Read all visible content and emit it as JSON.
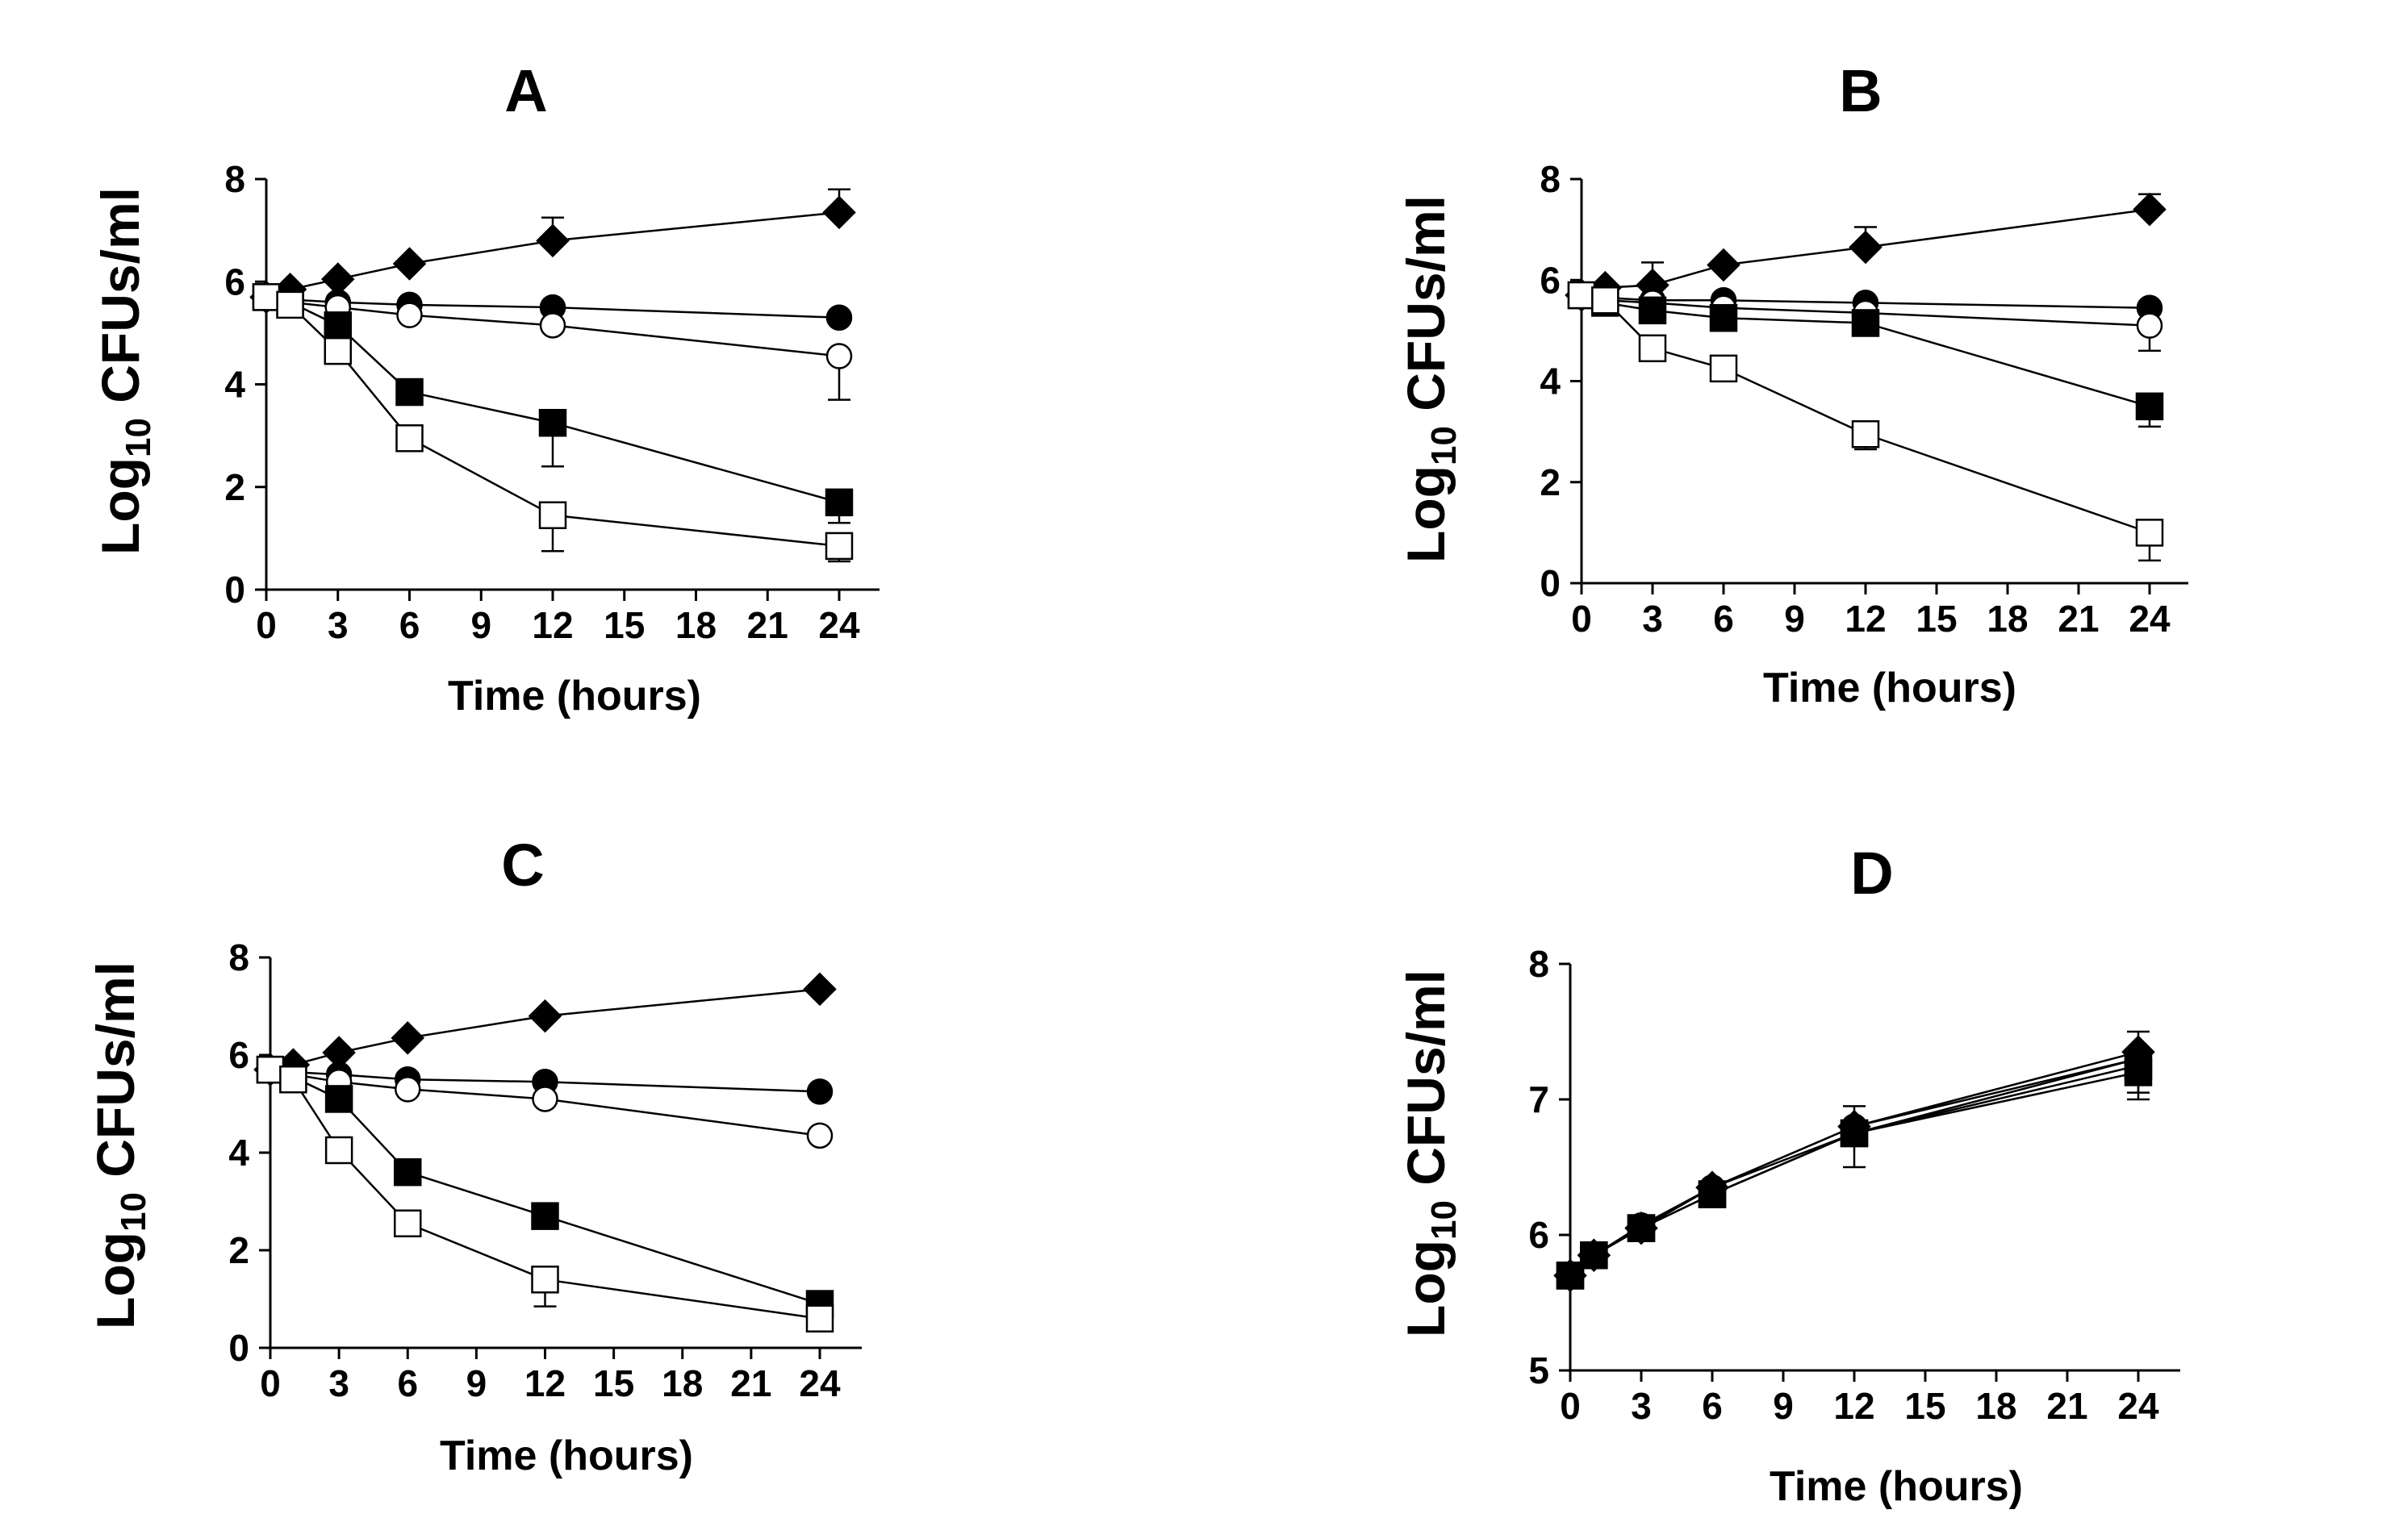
{
  "figure": {
    "background": "#ffffff",
    "ink": "#000000"
  },
  "chart_data": [
    {
      "type": "line",
      "title": "A",
      "xlabel": "Time (hours)",
      "ylabel_main": "Log",
      "ylabel_sub": "10",
      "ylabel_rest": " CFUs/ml",
      "xlim": [
        0,
        26
      ],
      "ylim": [
        0,
        8
      ],
      "xticks": [
        0,
        3,
        6,
        9,
        12,
        15,
        18,
        21,
        24
      ],
      "yticks": [
        0,
        2,
        4,
        6,
        8
      ],
      "x": [
        0,
        1,
        3,
        6,
        12,
        24
      ],
      "series": [
        {
          "name": "filled-diamond",
          "marker": "diamond",
          "filled": true,
          "values": [
            5.7,
            5.85,
            6.05,
            6.35,
            6.8,
            7.35
          ],
          "err": [
            0,
            0,
            0,
            0,
            0.45,
            0.45
          ]
        },
        {
          "name": "filled-circle",
          "marker": "circle",
          "filled": true,
          "values": [
            5.7,
            5.65,
            5.6,
            5.55,
            5.5,
            5.3
          ],
          "err": [
            0,
            0,
            0,
            0,
            0,
            0
          ]
        },
        {
          "name": "open-circle",
          "marker": "circle",
          "filled": false,
          "values": [
            5.7,
            5.6,
            5.5,
            5.35,
            5.15,
            4.55
          ],
          "err": [
            0,
            0,
            0,
            0,
            0,
            0.85
          ]
        },
        {
          "name": "filled-square",
          "marker": "square",
          "filled": true,
          "values": [
            5.7,
            5.6,
            5.15,
            3.85,
            3.25,
            1.7
          ],
          "err": [
            0,
            0,
            0,
            0,
            0.85,
            0.4
          ]
        },
        {
          "name": "open-square",
          "marker": "square",
          "filled": false,
          "values": [
            5.7,
            5.55,
            4.65,
            2.95,
            1.45,
            0.85
          ],
          "err": [
            0,
            0,
            0,
            0,
            0.7,
            0.3
          ]
        }
      ]
    },
    {
      "type": "line",
      "title": "B",
      "xlabel": "Time (hours)",
      "ylabel_main": "Log",
      "ylabel_sub": "10",
      "ylabel_rest": " CFUs/ml",
      "xlim": [
        0,
        26
      ],
      "ylim": [
        0,
        8
      ],
      "xticks": [
        0,
        3,
        6,
        9,
        12,
        15,
        18,
        21,
        24
      ],
      "yticks": [
        0,
        2,
        4,
        6,
        8
      ],
      "x": [
        0,
        1,
        3,
        6,
        12,
        24
      ],
      "series": [
        {
          "name": "filled-diamond",
          "marker": "diamond",
          "filled": true,
          "values": [
            5.7,
            5.85,
            5.9,
            6.3,
            6.65,
            7.4
          ],
          "err": [
            0,
            0,
            0.45,
            0,
            0.4,
            0.3
          ]
        },
        {
          "name": "filled-circle",
          "marker": "circle",
          "filled": true,
          "values": [
            5.7,
            5.65,
            5.6,
            5.6,
            5.55,
            5.45
          ],
          "err": [
            0,
            0,
            0,
            0,
            0,
            0
          ]
        },
        {
          "name": "open-circle",
          "marker": "circle",
          "filled": false,
          "values": [
            5.7,
            5.6,
            5.55,
            5.45,
            5.35,
            5.1
          ],
          "err": [
            0,
            0,
            0,
            0,
            0,
            0.5
          ]
        },
        {
          "name": "filled-square",
          "marker": "square",
          "filled": true,
          "values": [
            5.7,
            5.55,
            5.4,
            5.25,
            5.15,
            3.5
          ],
          "err": [
            0,
            0,
            0,
            0,
            0,
            0.4
          ]
        },
        {
          "name": "open-square",
          "marker": "square",
          "filled": false,
          "values": [
            5.7,
            5.6,
            4.65,
            4.25,
            2.95,
            1.0
          ],
          "err": [
            0,
            0,
            0,
            0,
            0.3,
            0.55
          ]
        }
      ]
    },
    {
      "type": "line",
      "title": "C",
      "xlabel": "Time (hours)",
      "ylabel_main": "Log",
      "ylabel_sub": "10",
      "ylabel_rest": " CFUs/ml",
      "xlim": [
        0,
        26
      ],
      "ylim": [
        0,
        8
      ],
      "xticks": [
        0,
        3,
        6,
        9,
        12,
        15,
        18,
        21,
        24
      ],
      "yticks": [
        0,
        2,
        4,
        6,
        8
      ],
      "x": [
        0,
        1,
        3,
        6,
        12,
        24
      ],
      "series": [
        {
          "name": "filled-diamond",
          "marker": "diamond",
          "filled": true,
          "values": [
            5.7,
            5.8,
            6.05,
            6.35,
            6.8,
            7.35
          ],
          "err": [
            0,
            0,
            0,
            0,
            0,
            0
          ]
        },
        {
          "name": "filled-circle",
          "marker": "circle",
          "filled": true,
          "values": [
            5.7,
            5.65,
            5.6,
            5.5,
            5.45,
            5.25
          ],
          "err": [
            0,
            0,
            0,
            0,
            0,
            0
          ]
        },
        {
          "name": "open-circle",
          "marker": "circle",
          "filled": false,
          "values": [
            5.7,
            5.6,
            5.45,
            5.3,
            5.1,
            4.35
          ],
          "err": [
            0,
            0,
            0,
            0,
            0,
            0
          ]
        },
        {
          "name": "filled-square",
          "marker": "square",
          "filled": true,
          "values": [
            5.7,
            5.55,
            5.1,
            3.6,
            2.7,
            0.9
          ],
          "err": [
            0,
            0,
            0,
            0,
            0,
            0
          ]
        },
        {
          "name": "open-square",
          "marker": "square",
          "filled": false,
          "values": [
            5.7,
            5.5,
            4.05,
            2.55,
            1.4,
            0.6
          ],
          "err": [
            0,
            0,
            0,
            0,
            0.55,
            0
          ]
        }
      ]
    },
    {
      "type": "line",
      "title": "D",
      "xlabel": "Time (hours)",
      "ylabel_main": "Log",
      "ylabel_sub": "10",
      "ylabel_rest": " CFUs/ml",
      "xlim": [
        0,
        26
      ],
      "ylim": [
        5,
        8
      ],
      "xticks": [
        0,
        3,
        6,
        9,
        12,
        15,
        18,
        21,
        24
      ],
      "yticks": [
        5,
        6,
        7,
        8
      ],
      "x": [
        0,
        1,
        3,
        6,
        12,
        24
      ],
      "series": [
        {
          "name": "filled-diamond",
          "marker": "diamond",
          "filled": true,
          "values": [
            5.7,
            5.85,
            6.05,
            6.35,
            6.8,
            7.35
          ],
          "err": [
            0,
            0,
            0,
            0,
            0.15,
            0.15
          ]
        },
        {
          "name": "filled-circle",
          "marker": "circle",
          "filled": true,
          "values": [
            5.7,
            5.85,
            6.05,
            6.35,
            6.8,
            7.3
          ],
          "err": [
            0,
            0,
            0,
            0,
            0,
            0
          ]
        },
        {
          "name": "open-circle",
          "marker": "circle",
          "filled": true,
          "values": [
            5.7,
            5.85,
            6.07,
            6.35,
            6.75,
            7.3
          ],
          "err": [
            0,
            0,
            0,
            0,
            0,
            0
          ]
        },
        {
          "name": "filled-square",
          "marker": "square",
          "filled": true,
          "values": [
            5.7,
            5.85,
            6.05,
            6.3,
            6.75,
            7.25
          ],
          "err": [
            0,
            0,
            0,
            0,
            0.25,
            0.25
          ]
        },
        {
          "name": "open-square",
          "marker": "square",
          "filled": true,
          "values": [
            5.7,
            5.85,
            6.05,
            6.3,
            6.75,
            7.2
          ],
          "err": [
            0,
            0,
            0,
            0,
            0,
            0.15
          ]
        }
      ]
    }
  ]
}
